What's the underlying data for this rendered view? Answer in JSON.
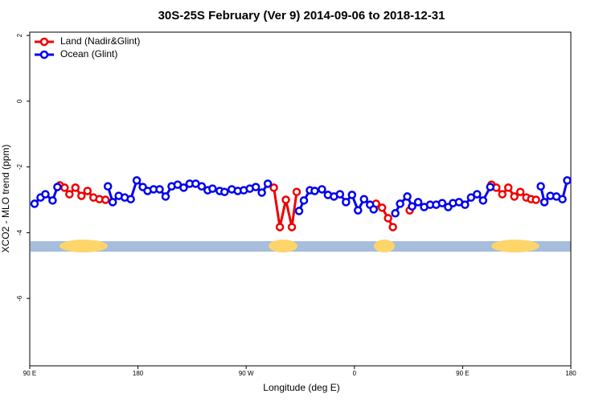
{
  "chart_data": {
    "type": "line",
    "title": "30S-25S February (Ver 9)   2014-09-06 to 2018-12-31",
    "x_label": "Longitude (deg E)",
    "y_label": "XCO2 - MLO trend (ppm)",
    "xlim": [
      90,
      540
    ],
    "ylim": [
      -8.05,
      2.1
    ],
    "xticks": [
      {
        "value": 90,
        "label": "90 E"
      },
      180,
      {
        "value": 270,
        "label": "90 W"
      },
      {
        "value": 360,
        "label": "0"
      },
      {
        "value": 450,
        "label": "90 E"
      },
      {
        "value": 540,
        "label": "180"
      }
    ],
    "yticks": [
      2,
      0,
      -2,
      -4,
      -6
    ],
    "legend": "top-left",
    "series": [
      {
        "name": "Land (Nadir&Glint)",
        "color": "#ee0000",
        "x": [
          115,
          119,
          123,
          128,
          133,
          138,
          143,
          148,
          153,
          null,
          293,
          298,
          303,
          308,
          312,
          null,
          378,
          383,
          388,
          392,
          null,
          406,
          null,
          474,
          478,
          483,
          488,
          493,
          498,
          503,
          507,
          511
        ],
        "values": [
          -2.56,
          -2.63,
          -2.83,
          -2.63,
          -2.88,
          -2.73,
          -2.93,
          -2.98,
          -3.0,
          null,
          -2.63,
          -3.83,
          -3.0,
          -3.83,
          -2.76,
          null,
          -3.12,
          -3.24,
          -3.56,
          -3.83,
          null,
          -3.32,
          null,
          -2.54,
          -2.63,
          -2.83,
          -2.63,
          -2.9,
          -2.76,
          -2.93,
          -2.98,
          -3.0
        ]
      },
      {
        "name": "Ocean (Glint)",
        "color": "#0000ee",
        "x": [
          94,
          99,
          103,
          109,
          113,
          null,
          155,
          159,
          164,
          169,
          174,
          179,
          184,
          188,
          193,
          198,
          203,
          208,
          213,
          218,
          223,
          228,
          233,
          238,
          242,
          248,
          252,
          258,
          263,
          268,
          273,
          278,
          283,
          288,
          null,
          314,
          318,
          323,
          327,
          333,
          338,
          343,
          348,
          353,
          358,
          363,
          368,
          373,
          376,
          null,
          394,
          398,
          404,
          408,
          413,
          418,
          423,
          428,
          433,
          438,
          442,
          447,
          452,
          457,
          462,
          467,
          473,
          null,
          515,
          518,
          523,
          528,
          533,
          537
        ],
        "values": [
          -3.12,
          -2.93,
          -2.83,
          -3.02,
          -2.61,
          null,
          -2.59,
          -3.07,
          -2.88,
          -2.93,
          -2.98,
          -2.41,
          -2.61,
          -2.73,
          -2.68,
          -2.68,
          -2.9,
          -2.59,
          -2.54,
          -2.63,
          -2.51,
          -2.51,
          -2.59,
          -2.71,
          -2.66,
          -2.73,
          -2.76,
          -2.68,
          -2.73,
          -2.71,
          -2.66,
          -2.61,
          -2.78,
          -2.51,
          null,
          -3.34,
          -3.02,
          -2.71,
          -2.73,
          -2.68,
          -2.85,
          -2.9,
          -2.83,
          -3.07,
          -2.85,
          -3.32,
          -2.98,
          -3.15,
          -3.29,
          null,
          -3.41,
          -3.12,
          -2.9,
          -3.2,
          -3.07,
          -3.22,
          -3.15,
          -3.15,
          -3.1,
          -3.22,
          -3.1,
          -3.07,
          -3.15,
          -2.93,
          -2.83,
          -3.02,
          -2.61,
          null,
          -2.59,
          -3.07,
          -2.88,
          -2.9,
          -2.98,
          -2.41
        ]
      }
    ]
  }
}
